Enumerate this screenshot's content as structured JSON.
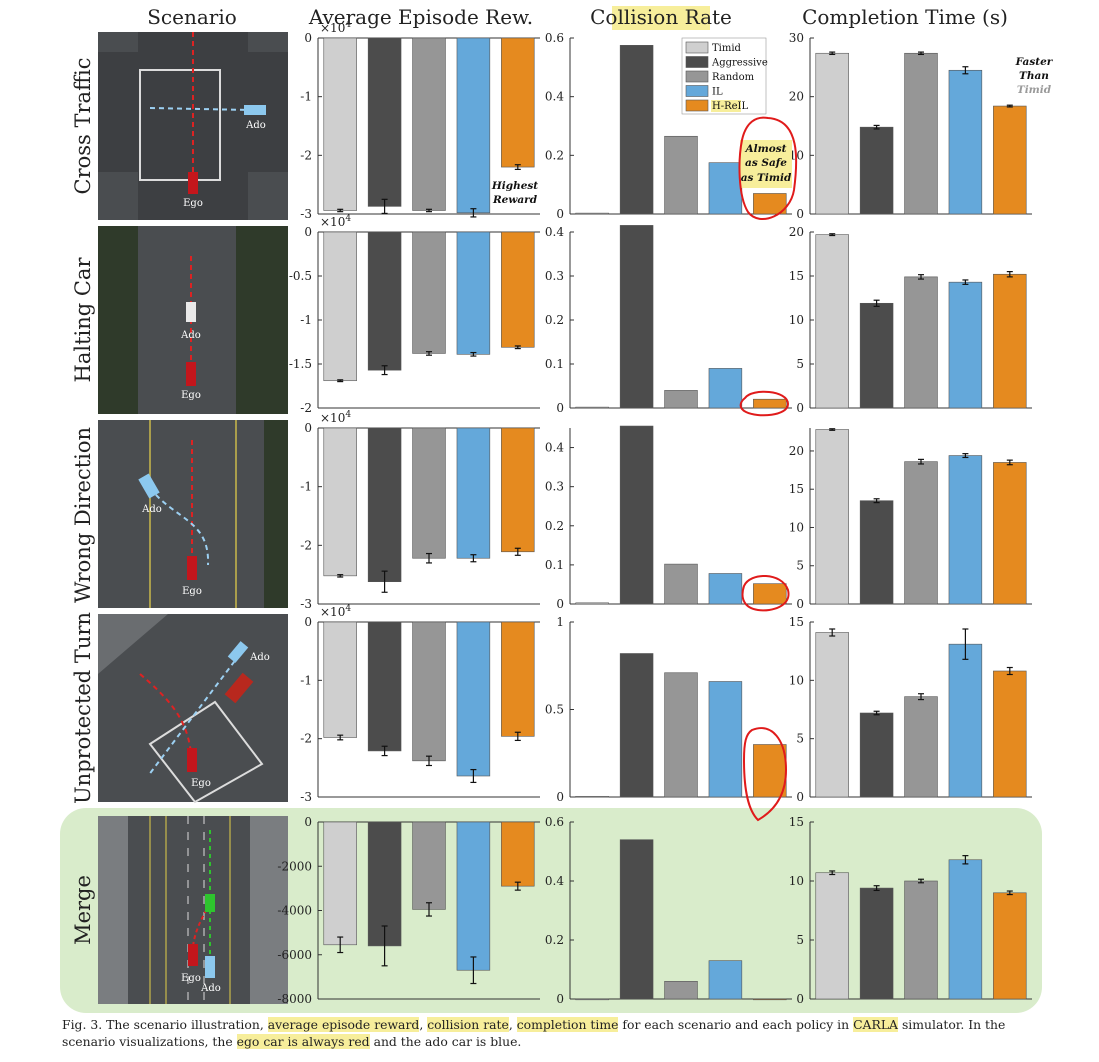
{
  "headers": {
    "scenario": "Scenario",
    "reward": "Average Episode Rew.",
    "collision_word": "Collision",
    "collision_rest": " Rate",
    "completion": "Completion Time (s)"
  },
  "legend": [
    "Timid",
    "Aggressive",
    "Random",
    "IL",
    "H-ReIL"
  ],
  "colors": {
    "Timid": "#cfcfcf",
    "Aggressive": "#4c4c4c",
    "Random": "#969696",
    "IL": "#64a8da",
    "H-ReIL": "#e58a1f",
    "highlight": "#f7ee9b",
    "merge_bg": "#d9eccb",
    "annotation_red": "#e01b1b"
  },
  "annotations": {
    "highest_reward": [
      "Highest",
      "Reward"
    ],
    "almost_safe": [
      "Almost",
      "as Safe",
      "as Timid"
    ],
    "faster_than": [
      "Faster",
      "Than",
      "Timid"
    ]
  },
  "scenes": [
    {
      "label": "Cross Traffic",
      "ego": "Ego",
      "ado": "Ado"
    },
    {
      "label": "Halting Car",
      "ego": "Ego",
      "ado": "Ado"
    },
    {
      "label": "Wrong Direction",
      "ego": "Ego",
      "ado": "Ado"
    },
    {
      "label": "Unprotected Turn",
      "ego": "Ego",
      "ado": "Ado"
    },
    {
      "label": "Merge",
      "ego": "Ego",
      "ado": "Ado"
    }
  ],
  "chart_data": [
    {
      "scenario": "Cross Traffic",
      "metric": "Average Episode Reward",
      "type": "bar",
      "multiplier": "×10^4",
      "ylim": [
        -3,
        0
      ],
      "ticks": [
        "0",
        "-1",
        "-2",
        "-3"
      ],
      "categories": [
        "Timid",
        "Aggressive",
        "Random",
        "IL",
        "H-ReIL"
      ],
      "values": [
        -2.94,
        -2.87,
        -2.94,
        -2.98,
        -2.2
      ],
      "errors": [
        0.02,
        0.12,
        0.02,
        0.07,
        0.04
      ]
    },
    {
      "scenario": "Cross Traffic",
      "metric": "Collision Rate",
      "type": "bar",
      "ylim": [
        0,
        0.6
      ],
      "ticks": [
        "0",
        "0.2",
        "0.4",
        "0.6"
      ],
      "categories": [
        "Timid",
        "Aggressive",
        "Random",
        "IL",
        "H-ReIL"
      ],
      "values": [
        0.003,
        0.575,
        0.265,
        0.175,
        0.07
      ],
      "errors": [
        0,
        0,
        0,
        0,
        0
      ]
    },
    {
      "scenario": "Cross Traffic",
      "metric": "Completion Time (s)",
      "type": "bar",
      "ylim": [
        0,
        30
      ],
      "ticks": [
        "0",
        "10",
        "20",
        "30"
      ],
      "categories": [
        "Timid",
        "Aggressive",
        "Random",
        "IL",
        "H-ReIL"
      ],
      "values": [
        27.4,
        14.8,
        27.4,
        24.5,
        18.4
      ],
      "errors": [
        0.2,
        0.3,
        0.2,
        0.6,
        0.15
      ]
    },
    {
      "scenario": "Halting Car",
      "metric": "Average Episode Reward",
      "type": "bar",
      "multiplier": "×10^4",
      "ylim": [
        -2,
        0
      ],
      "ticks": [
        "0",
        "-0.5",
        "-1",
        "-1.5",
        "-2"
      ],
      "categories": [
        "Timid",
        "Aggressive",
        "Random",
        "IL",
        "H-ReIL"
      ],
      "values": [
        -1.69,
        -1.57,
        -1.38,
        -1.39,
        -1.31
      ],
      "errors": [
        0.01,
        0.05,
        0.02,
        0.02,
        0.015
      ]
    },
    {
      "scenario": "Halting Car",
      "metric": "Collision Rate",
      "type": "bar",
      "ylim": [
        0,
        0.4
      ],
      "ticks": [
        "0",
        "0.1",
        "0.2",
        "0.3",
        "0.4"
      ],
      "categories": [
        "Timid",
        "Aggressive",
        "Random",
        "IL",
        "H-ReIL"
      ],
      "values": [
        0.002,
        0.415,
        0.04,
        0.09,
        0.02
      ],
      "errors": [
        0,
        0,
        0,
        0,
        0
      ]
    },
    {
      "scenario": "Halting Car",
      "metric": "Completion Time (s)",
      "type": "bar",
      "ylim": [
        0,
        20
      ],
      "ticks": [
        "0",
        "5",
        "10",
        "15",
        "20"
      ],
      "categories": [
        "Timid",
        "Aggressive",
        "Random",
        "IL",
        "H-ReIL"
      ],
      "values": [
        19.7,
        11.9,
        14.9,
        14.3,
        15.2
      ],
      "errors": [
        0.1,
        0.35,
        0.25,
        0.25,
        0.3
      ]
    },
    {
      "scenario": "Wrong Direction",
      "metric": "Average Episode Reward",
      "type": "bar",
      "multiplier": "×10^4",
      "ylim": [
        -3,
        0
      ],
      "ticks": [
        "0",
        "-1",
        "-2",
        "-3"
      ],
      "categories": [
        "Timid",
        "Aggressive",
        "Random",
        "IL",
        "H-ReIL"
      ],
      "values": [
        -2.52,
        -2.62,
        -2.22,
        -2.22,
        -2.11
      ],
      "errors": [
        0.02,
        0.18,
        0.08,
        0.06,
        0.06
      ]
    },
    {
      "scenario": "Wrong Direction",
      "metric": "Collision Rate",
      "type": "bar",
      "ylim": [
        0,
        0.45
      ],
      "ticks": [
        "0",
        "0.1",
        "0.2",
        "0.3",
        "0.4"
      ],
      "categories": [
        "Timid",
        "Aggressive",
        "Random",
        "IL",
        "H-ReIL"
      ],
      "values": [
        0.003,
        0.455,
        0.102,
        0.078,
        0.052
      ],
      "errors": [
        0,
        0,
        0,
        0,
        0
      ]
    },
    {
      "scenario": "Wrong Direction",
      "metric": "Completion Time (s)",
      "type": "bar",
      "ylim": [
        0,
        23
      ],
      "ticks": [
        "0",
        "5",
        "10",
        "15",
        "20"
      ],
      "categories": [
        "Timid",
        "Aggressive",
        "Random",
        "IL",
        "H-ReIL"
      ],
      "values": [
        22.8,
        13.5,
        18.6,
        19.4,
        18.5
      ],
      "errors": [
        0.1,
        0.25,
        0.3,
        0.25,
        0.3
      ]
    },
    {
      "scenario": "Unprotected Turn",
      "metric": "Average Episode Reward",
      "type": "bar",
      "multiplier": "×10^4",
      "ylim": [
        -3,
        0
      ],
      "ticks": [
        "0",
        "-1",
        "-2",
        "-3"
      ],
      "categories": [
        "Timid",
        "Aggressive",
        "Random",
        "IL",
        "H-ReIL"
      ],
      "values": [
        -1.98,
        -2.21,
        -2.38,
        -2.64,
        -1.96
      ],
      "errors": [
        0.04,
        0.08,
        0.08,
        0.11,
        0.07
      ]
    },
    {
      "scenario": "Unprotected Turn",
      "metric": "Collision Rate",
      "type": "bar",
      "ylim": [
        0,
        1
      ],
      "ticks": [
        "0",
        "0.5",
        "1"
      ],
      "categories": [
        "Timid",
        "Aggressive",
        "Random",
        "IL",
        "H-ReIL"
      ],
      "values": [
        0.004,
        0.82,
        0.71,
        0.66,
        0.3
      ],
      "errors": [
        0,
        0,
        0,
        0,
        0
      ]
    },
    {
      "scenario": "Unprotected Turn",
      "metric": "Completion Time (s)",
      "type": "bar",
      "ylim": [
        0,
        15
      ],
      "ticks": [
        "0",
        "5",
        "10",
        "15"
      ],
      "categories": [
        "Timid",
        "Aggressive",
        "Random",
        "IL",
        "H-ReIL"
      ],
      "values": [
        14.1,
        7.2,
        8.6,
        13.1,
        10.8
      ],
      "errors": [
        0.3,
        0.15,
        0.25,
        1.3,
        0.3
      ]
    },
    {
      "scenario": "Merge",
      "metric": "Average Episode Reward",
      "type": "bar",
      "ylim": [
        -8000,
        0
      ],
      "ticks": [
        "0",
        "-2000",
        "-4000",
        "-6000",
        "-8000"
      ],
      "categories": [
        "Timid",
        "Aggressive",
        "Random",
        "IL",
        "H-ReIL"
      ],
      "values": [
        -5550,
        -5600,
        -3950,
        -6700,
        -2900
      ],
      "errors": [
        350,
        900,
        300,
        600,
        180
      ]
    },
    {
      "scenario": "Merge",
      "metric": "Collision Rate",
      "type": "bar",
      "ylim": [
        0,
        0.6
      ],
      "ticks": [
        "0",
        "0.2",
        "0.4",
        "0.6"
      ],
      "categories": [
        "Timid",
        "Aggressive",
        "Random",
        "IL",
        "H-ReIL"
      ],
      "values": [
        0,
        0.54,
        0.06,
        0.13,
        0
      ],
      "errors": [
        0,
        0,
        0,
        0,
        0
      ]
    },
    {
      "scenario": "Merge",
      "metric": "Completion Time (s)",
      "type": "bar",
      "ylim": [
        0,
        15
      ],
      "ticks": [
        "0",
        "5",
        "10",
        "15"
      ],
      "categories": [
        "Timid",
        "Aggressive",
        "Random",
        "IL",
        "H-ReIL"
      ],
      "values": [
        10.7,
        9.4,
        10.0,
        11.8,
        9.0
      ],
      "errors": [
        0.15,
        0.2,
        0.15,
        0.35,
        0.15
      ]
    }
  ],
  "caption": {
    "prefix": "Fig. 3.",
    "t1": "  The scenario illustration, ",
    "h1": "average episode reward",
    "t2": ", ",
    "h2": "collision rate",
    "t3": ", ",
    "h3": "completion time",
    "t4": " for each scenario and each policy in ",
    "h4": "CARLA",
    "t5": " simulator. In the scenario visualizations, the ",
    "h5": "ego car is always red",
    "t6": " and the ado car is blue."
  }
}
